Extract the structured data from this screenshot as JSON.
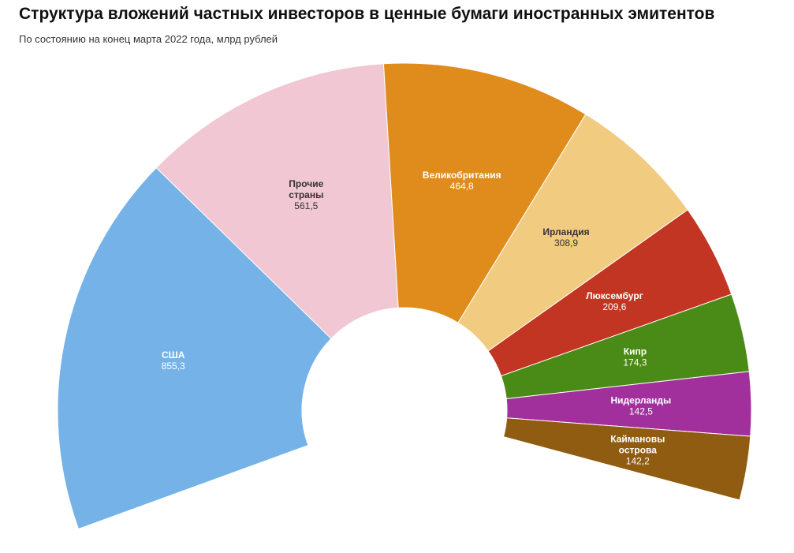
{
  "title": "Структура вложений частных инвесторов в ценные бумаги иностранных эмитентов",
  "subtitle": "По состоянию на конец марта 2022 года, млрд рублей",
  "chart_data": {
    "type": "pie",
    "shape": "semi-donut",
    "slices": [
      {
        "label": [
          "США"
        ],
        "value": 855.3,
        "value_text": "855,3",
        "color": "#74b2e7",
        "text_color": "#ffffff"
      },
      {
        "label": [
          "Прочие",
          "страны"
        ],
        "value": 561.5,
        "value_text": "561,5",
        "color": "#f0c7d3",
        "text_color": "#333333"
      },
      {
        "label": [
          "Великобритания"
        ],
        "value": 464.8,
        "value_text": "464,8",
        "color": "#e08c1c",
        "text_color": "#ffffff"
      },
      {
        "label": [
          "Ирландия"
        ],
        "value": 308.9,
        "value_text": "308,9",
        "color": "#f1cb7f",
        "text_color": "#333333"
      },
      {
        "label": [
          "Люксембург"
        ],
        "value": 209.6,
        "value_text": "209,6",
        "color": "#c13522",
        "text_color": "#ffffff"
      },
      {
        "label": [
          "Кипр"
        ],
        "value": 174.3,
        "value_text": "174,3",
        "color": "#4a8a16",
        "text_color": "#ffffff"
      },
      {
        "label": [
          "Нидерланды"
        ],
        "value": 142.5,
        "value_text": "142,5",
        "color": "#a2309c",
        "text_color": "#ffffff"
      },
      {
        "label": [
          "Каймановы",
          "острова"
        ],
        "value": 142.2,
        "value_text": "142,2",
        "color": "#8f5c11",
        "text_color": "#ffffff"
      }
    ]
  }
}
